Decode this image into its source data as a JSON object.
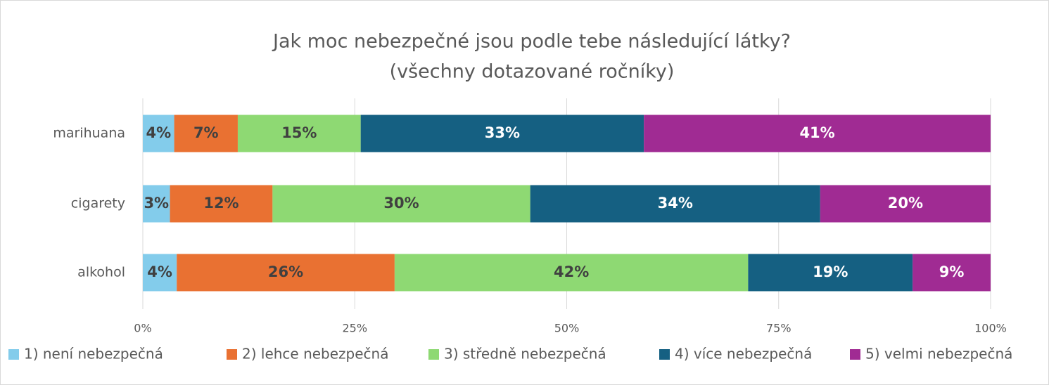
{
  "chart_data": {
    "type": "stacked_barh",
    "title": "Jak moc nebezpečné jsou podle tebe následující látky?",
    "subtitle": "(všechny dotazované ročníky)",
    "categories": [
      "marihuana",
      "cigarety",
      "alkohol"
    ],
    "series": [
      {
        "name": "1) není nebezpečná",
        "color": "#83CCEB",
        "label_color": "#404040",
        "values": [
          3.7,
          3.2,
          4.0
        ],
        "value_labels": [
          "4%",
          "3%",
          "4%"
        ]
      },
      {
        "name": "2) lehce nebezpečná",
        "color": "#E97132",
        "label_color": "#404040",
        "values": [
          7.5,
          12.1,
          25.7
        ],
        "value_labels": [
          "7%",
          "12%",
          "26%"
        ]
      },
      {
        "name": "3) středně nebezpečná",
        "color": "#8ED973",
        "label_color": "#404040",
        "values": [
          14.5,
          30.4,
          41.7
        ],
        "value_labels": [
          "15%",
          "30%",
          "42%"
        ]
      },
      {
        "name": "4) více nebezpečná",
        "color": "#156082",
        "label_color": "#ffffff",
        "values": [
          33.4,
          34.2,
          19.4
        ],
        "value_labels": [
          "33%",
          "34%",
          "19%"
        ]
      },
      {
        "name": "5) velmi nebezpečná",
        "color": "#A02B93",
        "label_color": "#ffffff",
        "values": [
          40.9,
          20.1,
          9.2
        ],
        "value_labels": [
          "41%",
          "20%",
          "9%"
        ]
      }
    ],
    "xlim": [
      0,
      100
    ],
    "xticks": [
      {
        "value": 0,
        "label": "0%"
      },
      {
        "value": 25,
        "label": "25%"
      },
      {
        "value": 50,
        "label": "50%"
      },
      {
        "value": 75,
        "label": "75%"
      },
      {
        "value": 100,
        "label": "100%"
      }
    ],
    "grid": true,
    "legend": "bottom"
  }
}
